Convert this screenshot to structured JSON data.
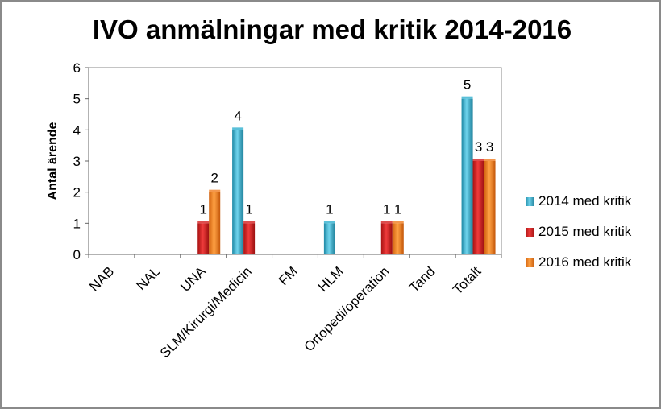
{
  "chart_data": {
    "type": "bar",
    "title": "IVO anmälningar med kritik 2014-2016",
    "xlabel": "",
    "ylabel": "Antal ärende",
    "ylim": [
      0,
      6
    ],
    "yticks": [
      0,
      1,
      2,
      3,
      4,
      5,
      6
    ],
    "grid": false,
    "legend_position": "right",
    "categories": [
      "NAB",
      "NAL",
      "UNA",
      "SLM/Kirurgi/Medicin",
      "FM",
      "HLM",
      "Ortopedi/operation",
      "Tand",
      "Totalt"
    ],
    "series": [
      {
        "name": "2014 med kritik",
        "color": "#31b0cf",
        "values": [
          null,
          null,
          null,
          4,
          null,
          1,
          null,
          null,
          5
        ]
      },
      {
        "name": "2015 med kritik",
        "color": "#d42020",
        "values": [
          null,
          null,
          1,
          1,
          null,
          null,
          1,
          null,
          3
        ]
      },
      {
        "name": "2016 med kritik",
        "color": "#f07d20",
        "values": [
          null,
          null,
          2,
          null,
          null,
          null,
          1,
          null,
          3
        ]
      }
    ]
  }
}
